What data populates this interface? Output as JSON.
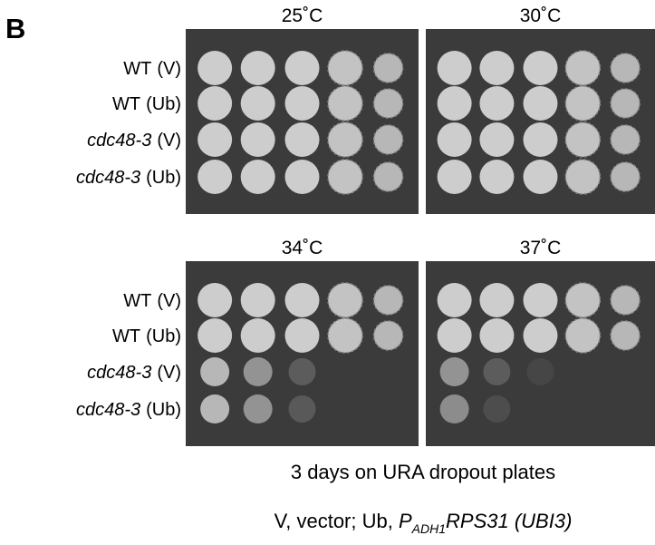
{
  "panel_label": "B",
  "groups": [
    {
      "plates": [
        {
          "temperature": "25˚C"
        },
        {
          "temperature": "30˚C"
        }
      ],
      "rows": [
        {
          "strain": "WT",
          "construct": "(V)"
        },
        {
          "strain": "WT",
          "construct": "(Ub)"
        },
        {
          "strain": "cdc48-3",
          "construct": "(V)"
        },
        {
          "strain": "cdc48-3",
          "construct": "(Ub)"
        }
      ]
    },
    {
      "plates": [
        {
          "temperature": "34˚C"
        },
        {
          "temperature": "37˚C"
        }
      ],
      "rows": [
        {
          "strain": "WT",
          "construct": "(V)"
        },
        {
          "strain": "WT",
          "construct": "(Ub)"
        },
        {
          "strain": "cdc48-3",
          "construct": "(V)"
        },
        {
          "strain": "cdc48-3",
          "construct": "(Ub)"
        }
      ]
    }
  ],
  "caption": {
    "line1": "3 days on URA dropout plates",
    "line2": {
      "prefix": "V, vector; Ub, ",
      "gene_letter": "P",
      "subscript": "ADH1",
      "gene": "RPS31 (UBI3)"
    }
  }
}
